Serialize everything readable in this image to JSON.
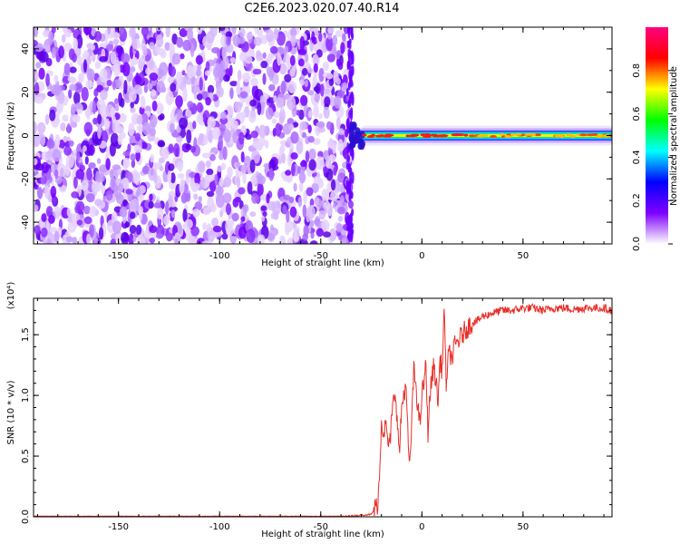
{
  "title": "C2E6.2023.020.07.40.R14",
  "chart_data": [
    {
      "type": "heatmap",
      "name": "spectrogram",
      "xlabel": "Height of straight line (km)",
      "ylabel": "Frequency (Hz)",
      "xlim": [
        -192,
        94
      ],
      "ylim": [
        -50,
        50
      ],
      "x_ticks": [
        -150,
        -100,
        -50,
        0,
        50
      ],
      "y_ticks": [
        -40,
        -20,
        0,
        20,
        40
      ],
      "colorbar": {
        "label": "Normalized spectral amplitude",
        "range": [
          0,
          1
        ],
        "ticks": [
          0.0,
          0.2,
          0.4,
          0.6,
          0.8
        ],
        "colors": [
          "#ffffff",
          "#7f00ff",
          "#0000ff",
          "#00ffff",
          "#00ff00",
          "#ffff00",
          "#ff0000",
          "#ff0080"
        ]
      },
      "regions": [
        {
          "from_km": -192,
          "to_km": -35,
          "kind": "broadband noise",
          "amplitude": 0.1
        },
        {
          "from_km": -35,
          "to_km": 94,
          "kind": "narrowband tone near 0 Hz",
          "amplitude": 0.9
        }
      ]
    },
    {
      "type": "line",
      "name": "snr",
      "xlabel": "Height of straight line (km)",
      "ylabel": "SNR (10 * v/v)",
      "multiplier_label": "(x10⁴)",
      "xlim": [
        -192,
        94
      ],
      "ylim": [
        0,
        1.8
      ],
      "x_ticks": [
        -150,
        -100,
        -50,
        0,
        50
      ],
      "y_ticks": [
        0.0,
        0.5,
        1.0,
        1.5
      ],
      "color": "#e8302a",
      "series": [
        {
          "x": [
            -192,
            -100,
            -40,
            -25,
            -22,
            -21,
            -20,
            -19,
            -18,
            -17,
            -16,
            -15,
            -14,
            -13,
            -12,
            -11,
            -10,
            -9,
            -8,
            -7,
            -6,
            -5,
            -4,
            -3,
            -2,
            -1,
            0,
            1,
            2,
            3,
            4,
            5,
            6,
            7,
            8,
            9,
            10,
            11,
            12,
            13,
            14,
            15,
            16,
            18,
            20,
            22,
            25,
            28,
            30,
            35,
            40,
            45,
            50,
            55,
            60,
            65,
            70,
            75,
            80,
            85,
            90,
            94
          ],
          "y": [
            0.0,
            0.0,
            0.0,
            0.02,
            0.1,
            0.3,
            0.8,
            0.7,
            0.75,
            0.65,
            0.55,
            0.8,
            0.95,
            1.05,
            0.7,
            0.55,
            0.9,
            1.0,
            1.1,
            0.7,
            0.38,
            0.8,
            1.2,
            1.1,
            0.9,
            0.75,
            1.0,
            1.1,
            1.25,
            0.7,
            1.0,
            1.15,
            1.25,
            1.1,
            0.95,
            1.3,
            1.2,
            1.72,
            1.1,
            1.3,
            1.35,
            1.3,
            1.4,
            1.45,
            1.5,
            1.55,
            1.6,
            1.62,
            1.65,
            1.68,
            1.7,
            1.7,
            1.72,
            1.72,
            1.7,
            1.72,
            1.72,
            1.71,
            1.72,
            1.72,
            1.72,
            1.7
          ]
        }
      ]
    }
  ]
}
